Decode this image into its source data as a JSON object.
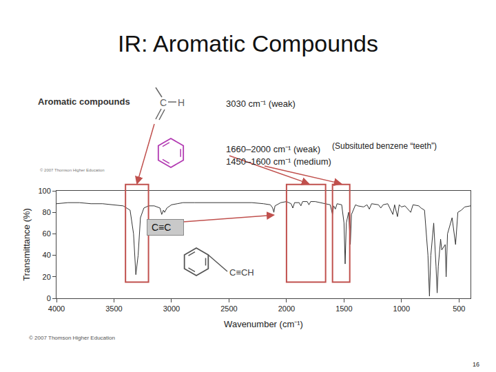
{
  "chart_data": {
    "type": "line",
    "title": "IR: Aromatic Compounds",
    "x_label": "Wavenumber (cm⁻¹)",
    "y_label": "Transmittance (%)",
    "color": "#333333",
    "grid": false,
    "xlim": [
      4000,
      400
    ],
    "xticks": [
      4000,
      3500,
      3000,
      2500,
      2000,
      1500,
      1000,
      500
    ],
    "ylim": [
      0,
      100
    ],
    "yticks": [
      0,
      20,
      40,
      60,
      80,
      100
    ],
    "x": [
      4000,
      3900,
      3800,
      3700,
      3600,
      3500,
      3420,
      3360,
      3330,
      3310,
      3290,
      3270,
      3240,
      3200,
      3150,
      3100,
      3085,
      3070,
      3060,
      3040,
      3000,
      2950,
      2900,
      2800,
      2700,
      2600,
      2500,
      2400,
      2300,
      2200,
      2140,
      2120,
      2110,
      2100,
      2050,
      2000,
      1960,
      1945,
      1930,
      1890,
      1875,
      1860,
      1820,
      1805,
      1790,
      1750,
      1700,
      1660,
      1620,
      1600,
      1590,
      1575,
      1560,
      1520,
      1500,
      1490,
      1480,
      1460,
      1445,
      1435,
      1400,
      1380,
      1330,
      1300,
      1280,
      1260,
      1200,
      1180,
      1160,
      1120,
      1075,
      1060,
      1035,
      1020,
      1000,
      970,
      920,
      900,
      850,
      830,
      800,
      770,
      757,
      745,
      720,
      700,
      690,
      680,
      660,
      650,
      620,
      612,
      600,
      560,
      530,
      510,
      480,
      450,
      400
    ],
    "values": [
      88,
      89,
      89,
      88,
      88,
      87,
      86,
      82,
      60,
      22,
      40,
      75,
      84,
      86,
      86,
      84,
      78,
      82,
      80,
      84,
      87,
      88,
      89,
      89,
      89,
      89,
      89,
      89,
      89,
      88,
      87,
      84,
      80,
      86,
      89,
      90,
      88,
      84,
      89,
      89,
      86,
      90,
      90,
      87,
      90,
      90,
      89,
      88,
      87,
      78,
      86,
      83,
      88,
      87,
      70,
      32,
      70,
      80,
      50,
      78,
      87,
      86,
      85,
      87,
      83,
      88,
      87,
      84,
      87,
      88,
      78,
      87,
      76,
      87,
      85,
      86,
      80,
      87,
      86,
      84,
      82,
      40,
      2,
      40,
      70,
      30,
      5,
      30,
      55,
      45,
      50,
      20,
      60,
      75,
      50,
      80,
      82,
      85,
      86
    ],
    "regions": [
      {
        "from": 3400,
        "to": 3200
      },
      {
        "from": 2000,
        "to": 1660
      },
      {
        "from": 1600,
        "to": 1450
      }
    ],
    "label": {
      "text": "C≡C",
      "x": 2110
    }
  },
  "slide": {
    "heading": "Aromatic compounds",
    "bond_atoms": [
      "C",
      "H"
    ],
    "absorptions": [
      "3030 cm⁻¹ (weak)",
      "1660–2000 cm⁻¹ (weak)",
      "1450–1600 cm⁻¹ (medium)"
    ],
    "note": "(Subsituted benzene “teeth”)",
    "structure": "C≡CH",
    "copyright": "© 2007 Thomson Higher Education",
    "page": 16
  }
}
